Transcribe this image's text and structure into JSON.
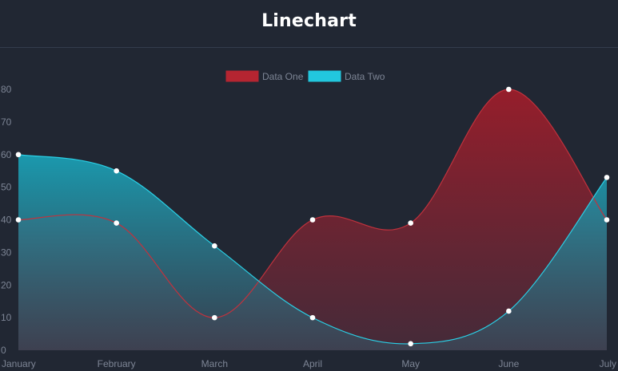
{
  "header": {
    "title": "Linechart"
  },
  "chart_data": {
    "type": "area",
    "title": "",
    "categories": [
      "January",
      "February",
      "March",
      "April",
      "May",
      "June",
      "July"
    ],
    "series": [
      {
        "name": "Data One",
        "values": [
          40,
          39,
          10,
          40,
          39,
          80,
          40
        ],
        "color": "#b52531"
      },
      {
        "name": "Data Two",
        "values": [
          60,
          55,
          32,
          10,
          2,
          12,
          53
        ],
        "color": "#22c7de"
      }
    ],
    "ylim": [
      0,
      80
    ],
    "yticks": [
      0,
      10,
      20,
      30,
      40,
      50,
      60,
      70,
      80
    ],
    "legend": "top-center",
    "grid": false,
    "curve": "smooth"
  }
}
